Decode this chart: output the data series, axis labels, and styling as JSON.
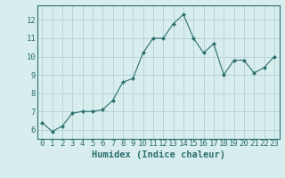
{
  "x": [
    0,
    1,
    2,
    3,
    4,
    5,
    6,
    7,
    8,
    9,
    10,
    11,
    12,
    13,
    14,
    15,
    16,
    17,
    18,
    19,
    20,
    21,
    22,
    23
  ],
  "y": [
    6.4,
    5.9,
    6.2,
    6.9,
    7.0,
    7.0,
    7.1,
    7.6,
    8.6,
    8.8,
    10.2,
    11.0,
    11.0,
    11.8,
    12.3,
    11.0,
    10.2,
    10.7,
    9.0,
    9.8,
    9.8,
    9.1,
    9.4,
    10.0
  ],
  "line_color": "#2e6e6e",
  "bg_color": "#d8eeee",
  "grid_color": "#b8d4d4",
  "axis_color": "#2e6e6e",
  "xlabel": "Humidex (Indice chaleur)",
  "ylim": [
    5.5,
    12.8
  ],
  "xlim": [
    -0.5,
    23.5
  ],
  "yticks": [
    6,
    7,
    8,
    9,
    10,
    11,
    12
  ],
  "xticks": [
    0,
    1,
    2,
    3,
    4,
    5,
    6,
    7,
    8,
    9,
    10,
    11,
    12,
    13,
    14,
    15,
    16,
    17,
    18,
    19,
    20,
    21,
    22,
    23
  ],
  "fontsize": 6.5,
  "label_fontsize": 7.5
}
